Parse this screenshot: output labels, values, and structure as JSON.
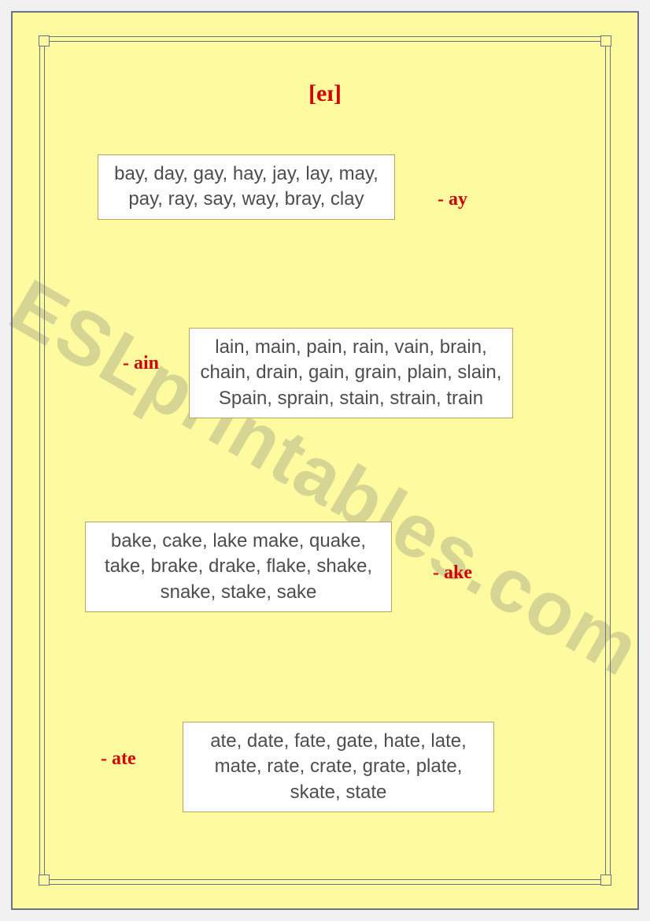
{
  "title": "[eɪ]",
  "watermark": "ESLprintables.com",
  "colors": {
    "page_bg": "#fdfa9f",
    "outer_bg": "#f1f1f1",
    "frame_border": "#6b7188",
    "box_bg": "#ffffff",
    "box_border": "#c1a160",
    "box_text": "#4d4d4d",
    "accent_red": "#d20000"
  },
  "groups": {
    "ay": {
      "label": "- ay",
      "words": "bay, day, gay, hay, jay, lay, may, pay, ray, say, way, bray, clay"
    },
    "ain": {
      "label": "- ain",
      "words": "lain, main, pain, rain, vain, brain, chain, drain, gain, grain, plain, slain, Spain, sprain, stain, strain, train"
    },
    "ake": {
      "label": "- ake",
      "words": "bake, cake, lake make, quake, take, brake, drake, flake, shake, snake, stake, sake"
    },
    "ate": {
      "label": "- ate",
      "words": "ate, date, fate, gate, hate, late, mate, rate, crate, grate, plate, skate, state"
    }
  }
}
